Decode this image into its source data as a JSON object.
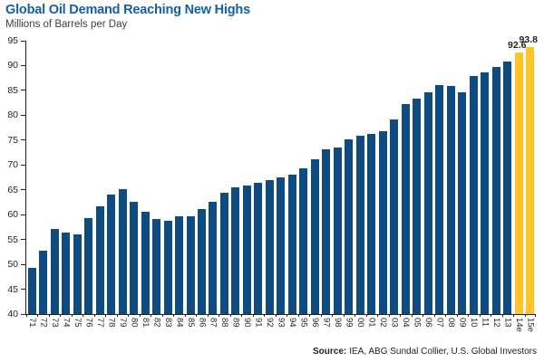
{
  "header": {
    "title": "Global Oil Demand Reaching New Highs",
    "subtitle": "Millions of Barrels per Day"
  },
  "footer": {
    "source_label": "Source:",
    "source_text": "IEA, ABG Sundal Collier, U.S. Global Investors"
  },
  "colors": {
    "bar": "#0E4B80",
    "highlight_bar": "#FFC425",
    "title_text": "#1460A5",
    "axis_text": "#231F20",
    "axis_line": "#231F20"
  },
  "chart_data": {
    "type": "bar",
    "title": "Global Oil Demand Reaching New Highs",
    "xlabel": "",
    "ylabel": "Millions of Barrels per Day",
    "ylim": [
      40,
      95
    ],
    "ytick_step": 5,
    "grid": false,
    "legend": false,
    "categories": [
      "71",
      "72",
      "73",
      "74",
      "75",
      "76",
      "77",
      "78",
      "79",
      "80",
      "81",
      "82",
      "83",
      "84",
      "85",
      "86",
      "87",
      "88",
      "89",
      "90",
      "91",
      "92",
      "93",
      "94",
      "95",
      "96",
      "97",
      "98",
      "99",
      "00",
      "01",
      "02",
      "03",
      "04",
      "05",
      "06",
      "07",
      "08",
      "09",
      "10",
      "11",
      "12",
      "13",
      "14e",
      "15e"
    ],
    "values": [
      49.2,
      52.8,
      57.1,
      56.4,
      56.1,
      59.3,
      61.7,
      64.0,
      65.1,
      62.5,
      60.6,
      59.2,
      58.8,
      59.7,
      59.6,
      61.2,
      62.5,
      64.4,
      65.5,
      65.9,
      66.4,
      66.9,
      67.5,
      68.1,
      69.4,
      71.2,
      73.2,
      73.5,
      75.1,
      75.9,
      76.2,
      76.7,
      79.1,
      82.3,
      83.4,
      84.6,
      86.1,
      85.9,
      84.7,
      87.9,
      88.6,
      89.8,
      90.9,
      92.6,
      93.8
    ],
    "highlight_categories": [
      "14e",
      "15e"
    ],
    "data_labels": [
      {
        "category": "14e",
        "text": "92.6"
      },
      {
        "category": "15e",
        "text": "93.8"
      }
    ]
  }
}
